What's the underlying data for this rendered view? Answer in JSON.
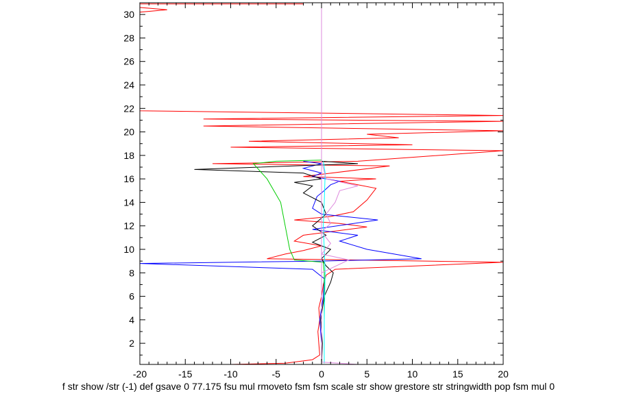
{
  "chart_data": {
    "type": "line",
    "title": "",
    "xlabel": "",
    "ylabel": "",
    "xlim": [
      -20,
      20
    ],
    "ylim": [
      0.2,
      31
    ],
    "xticks": [
      -20,
      -15,
      -10,
      -5,
      0,
      5,
      10,
      15,
      20
    ],
    "yticks": [
      2,
      4,
      6,
      8,
      10,
      12,
      14,
      16,
      18,
      20,
      22,
      24,
      26,
      28,
      30
    ],
    "grid": false,
    "legend": "none",
    "caption": "f str show /str (-1) def gsave 0 77.175 fsu mul rmoveto fsm fsm scale str show grestore str stringwidth pop fsm mul 0",
    "series": [
      {
        "color": "#ff0000",
        "points": [
          [
            -10,
            0.2
          ],
          [
            -4,
            0.3
          ],
          [
            -1,
            0.6
          ],
          [
            -0.2,
            1
          ],
          [
            -0.3,
            2
          ],
          [
            -0.4,
            3
          ],
          [
            -0.2,
            4
          ],
          [
            -0.3,
            5
          ],
          [
            0,
            6
          ],
          [
            0.2,
            7
          ],
          [
            0.5,
            7.8
          ],
          [
            1.5,
            8.3
          ],
          [
            20,
            8.9
          ],
          [
            3,
            9.1
          ],
          [
            -6,
            9.2
          ],
          [
            -4,
            9.6
          ],
          [
            -2,
            9.9
          ],
          [
            0,
            10.3
          ],
          [
            -3,
            10.7
          ],
          [
            -2,
            11.2
          ],
          [
            5,
            11.9
          ],
          [
            2,
            12.2
          ],
          [
            -3,
            12.5
          ],
          [
            1,
            12.8
          ],
          [
            3.5,
            13.2
          ],
          [
            5,
            14.2
          ],
          [
            6,
            15.2
          ],
          [
            4,
            15.5
          ],
          [
            2,
            15.8
          ],
          [
            6,
            16
          ],
          [
            -2,
            16.2
          ],
          [
            7.5,
            17.1
          ],
          [
            -12,
            17.3
          ],
          [
            4,
            17.5
          ],
          [
            20,
            18.4
          ],
          [
            -10,
            18.7
          ],
          [
            10,
            18.9
          ],
          [
            -8,
            19.2
          ],
          [
            8.5,
            19.5
          ],
          [
            5,
            19.8
          ],
          [
            20,
            20.1
          ],
          [
            -13,
            20.5
          ],
          [
            20,
            20.9
          ],
          [
            -13,
            21.1
          ],
          [
            20,
            21.4
          ],
          [
            -20,
            21.8
          ],
          [
            -20,
            30.2
          ],
          [
            -17,
            30.4
          ],
          [
            -20,
            30.6
          ],
          [
            -20,
            30.9
          ],
          [
            -2,
            30.9
          ]
        ]
      },
      {
        "color": "#0000ff",
        "points": [
          [
            0,
            0.2
          ],
          [
            0,
            2
          ],
          [
            -0.2,
            4
          ],
          [
            0.2,
            6
          ],
          [
            0.3,
            7.5
          ],
          [
            -1,
            8.3
          ],
          [
            -20,
            8.8
          ],
          [
            0,
            9
          ],
          [
            11,
            9.2
          ],
          [
            5,
            10
          ],
          [
            2,
            10.7
          ],
          [
            4,
            11.2
          ],
          [
            -1,
            11.7
          ],
          [
            6.2,
            12.5
          ],
          [
            0,
            13
          ],
          [
            -1,
            13.5
          ],
          [
            -0.5,
            14.5
          ],
          [
            0.3,
            15
          ],
          [
            1,
            15.5
          ],
          [
            2,
            15.8
          ],
          [
            -1,
            16.2
          ],
          [
            0,
            16.5
          ],
          [
            -2,
            16.9
          ],
          [
            0,
            17.3
          ],
          [
            -2,
            17.5
          ]
        ]
      },
      {
        "color": "#000000",
        "points": [
          [
            0,
            0.2
          ],
          [
            0.1,
            2
          ],
          [
            -0.1,
            4
          ],
          [
            0.3,
            6
          ],
          [
            1,
            7.2
          ],
          [
            1.3,
            8
          ],
          [
            0.5,
            8.6
          ],
          [
            0,
            9.2
          ],
          [
            1,
            10
          ],
          [
            -1,
            10.6
          ],
          [
            0.5,
            11.2
          ],
          [
            -1,
            12
          ],
          [
            0.5,
            13
          ],
          [
            0,
            14
          ],
          [
            -2,
            14.8
          ],
          [
            -1,
            15.4
          ],
          [
            -3,
            15.7
          ],
          [
            0,
            16
          ],
          [
            -2,
            16.5
          ],
          [
            -14,
            16.8
          ],
          [
            4,
            17.3
          ],
          [
            0,
            17.5
          ]
        ]
      },
      {
        "color": "#00cc00",
        "points": [
          [
            0.3,
            0.3
          ],
          [
            0.3,
            4
          ],
          [
            0.3,
            8
          ],
          [
            0.2,
            8.9
          ],
          [
            -3,
            9.1
          ],
          [
            -3.5,
            10
          ],
          [
            -4,
            12
          ],
          [
            -4.5,
            14
          ],
          [
            -6,
            16
          ],
          [
            -7.5,
            17.3
          ],
          [
            -5,
            17.5
          ],
          [
            0,
            17.6
          ]
        ]
      },
      {
        "color": "#00ffff",
        "points": [
          [
            0.3,
            0.3
          ],
          [
            0.3,
            4
          ],
          [
            0.4,
            8
          ],
          [
            0.3,
            10
          ],
          [
            0.2,
            12
          ],
          [
            0.3,
            14
          ],
          [
            0.4,
            16.5
          ],
          [
            0.2,
            17.5
          ]
        ]
      },
      {
        "color": "#dd88dd",
        "points": [
          [
            4,
            0.2
          ],
          [
            0,
            0.4
          ],
          [
            0,
            8
          ],
          [
            3,
            9.1
          ],
          [
            0,
            9.6
          ],
          [
            1,
            10.5
          ],
          [
            0,
            11.5
          ],
          [
            1,
            12.2
          ],
          [
            0.5,
            13
          ],
          [
            1.5,
            14
          ],
          [
            2,
            15
          ],
          [
            4,
            15.4
          ],
          [
            0.5,
            16
          ],
          [
            0,
            17.5
          ]
        ]
      },
      {
        "color": "#dd88dd",
        "points": [
          [
            0,
            0.2
          ],
          [
            0,
            31
          ]
        ]
      }
    ]
  }
}
